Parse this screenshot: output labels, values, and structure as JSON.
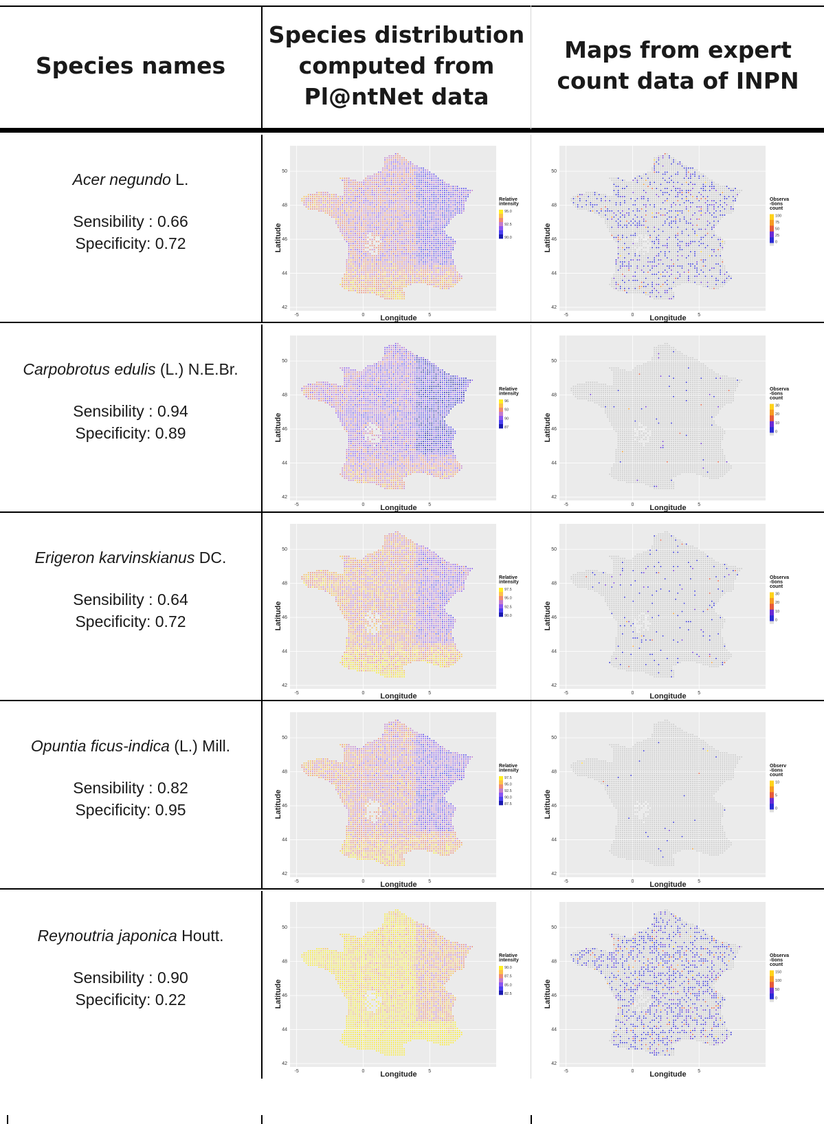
{
  "header": {
    "col1": "Species names",
    "col2": "Species distribution\ncomputed from\nPl@ntNet data",
    "col3": "Maps from expert\ncount data of INPN"
  },
  "axes": {
    "x_label": "Longitude",
    "y_label": "Latitude",
    "x_ticks": [
      "-5",
      "0",
      "5"
    ],
    "y_ticks": [
      "42",
      "44",
      "46",
      "48",
      "50"
    ],
    "x_range": [
      -5.5,
      10
    ],
    "y_range": [
      41.8,
      51.5
    ]
  },
  "colors": {
    "panel_bg": "#ebebeb",
    "grid": "#ffffff",
    "plantnet_scale": [
      "#1a1ab0",
      "#4b3ff0",
      "#8a55f2",
      "#c47acc",
      "#ef8a72",
      "#fcc04a",
      "#ffee22"
    ],
    "inpn_empty": "#c8c8c8",
    "inpn_scale": [
      "#2b2bd6",
      "#6a2bd6",
      "#e65a3a",
      "#f79a22",
      "#ffd21a"
    ]
  },
  "rows": [
    {
      "name_italic": "Acer negundo",
      "name_author": " L.",
      "sensibility": "Sensibility : 0.66",
      "specificity": "Specificity: 0.72",
      "plantnet_legend": {
        "title": [
          "Relative",
          "intensity"
        ],
        "ticks": [
          "95.0",
          "92.5",
          "90.0"
        ]
      },
      "inpn_legend": {
        "title": [
          "Observa",
          "-tions",
          "count"
        ],
        "ticks": [
          "100",
          "75",
          "50",
          "25",
          "0"
        ]
      },
      "inpn_density": 0.22
    },
    {
      "name_italic": "Carpobrotus edulis",
      "name_author": " (L.) N.E.Br.",
      "sensibility": "Sensibility : 0.94",
      "specificity": "Specificity: 0.89",
      "plantnet_legend": {
        "title": [
          "Relative",
          "intensity"
        ],
        "ticks": [
          "96",
          "93",
          "90",
          "87"
        ]
      },
      "inpn_legend": {
        "title": [
          "Observa",
          "-tions",
          "count"
        ],
        "ticks": [
          "30",
          "20",
          "10",
          "0"
        ]
      },
      "inpn_density": 0.015
    },
    {
      "name_italic": "Erigeron karvinskianus",
      "name_author": " DC.",
      "sensibility": "Sensibility : 0.64",
      "specificity": "Specificity: 0.72",
      "plantnet_legend": {
        "title": [
          "Relative",
          "intensity"
        ],
        "ticks": [
          "97.5",
          "95.0",
          "92.5",
          "90.0"
        ]
      },
      "inpn_legend": {
        "title": [
          "Observa",
          "-tions",
          "count"
        ],
        "ticks": [
          "30",
          "20",
          "10",
          "0"
        ]
      },
      "inpn_density": 0.05
    },
    {
      "name_italic": "Opuntia ficus-indica",
      "name_author": " (L.) Mill.",
      "sensibility": "Sensibility : 0.82",
      "specificity": "Specificity: 0.95",
      "plantnet_legend": {
        "title": [
          "Relative",
          "intensity"
        ],
        "ticks": [
          "97.5",
          "95.0",
          "92.5",
          "90.0",
          "87.5"
        ]
      },
      "inpn_legend": {
        "title": [
          "Observ",
          "-tions",
          "count"
        ],
        "ticks": [
          "10",
          "5",
          "0"
        ]
      },
      "inpn_density": 0.01
    },
    {
      "name_italic": "Reynoutria japonica",
      "name_author": " Houtt.",
      "sensibility": "Sensibility : 0.90",
      "specificity": "Specificity: 0.22",
      "plantnet_legend": {
        "title": [
          "Relative",
          "intensity"
        ],
        "ticks": [
          "90.0",
          "87.5",
          "85.0",
          "82.5"
        ]
      },
      "inpn_legend": {
        "title": [
          "Observa",
          "-tions",
          "count"
        ],
        "ticks": [
          "150",
          "100",
          "50",
          "0"
        ]
      },
      "inpn_density": 0.35
    }
  ]
}
